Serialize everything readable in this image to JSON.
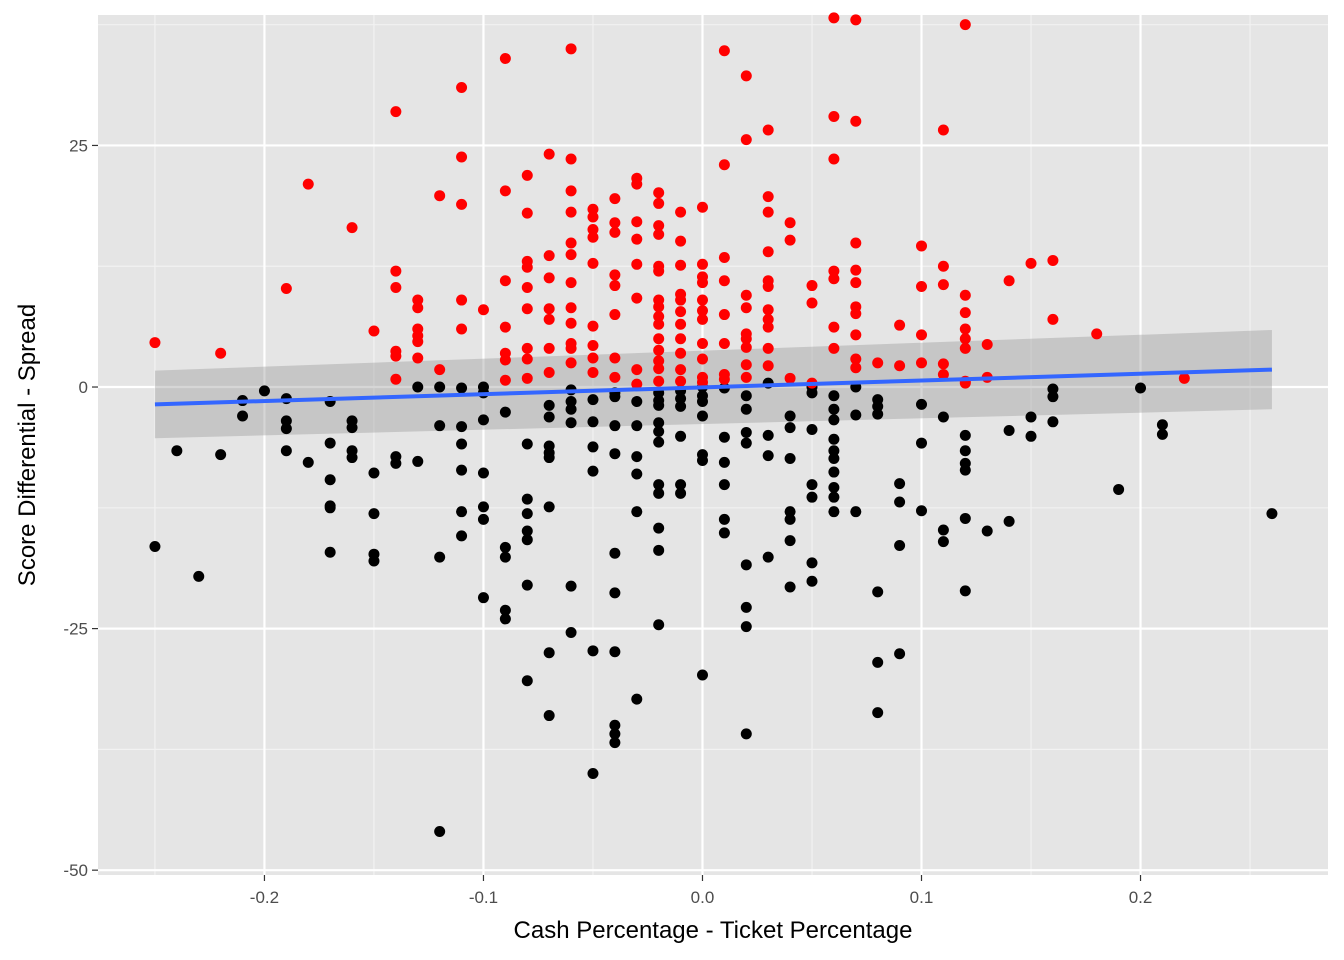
{
  "chart_data": {
    "type": "scatter",
    "title": "",
    "xlabel": "Cash Percentage - Ticket Percentage",
    "ylabel": "Score Differential - Spread",
    "xlim": [
      -0.276,
      0.2856
    ],
    "ylim": [
      -50.5,
      38.5
    ],
    "x_ticks": [
      -0.2,
      -0.1,
      0.0,
      0.1,
      0.2
    ],
    "x_tick_labels": [
      "-0.2",
      "-0.1",
      "0.0",
      "0.1",
      "0.2"
    ],
    "y_ticks": [
      -50,
      -25,
      0,
      25
    ],
    "y_tick_labels": [
      "-50",
      "-25",
      "0",
      "25"
    ],
    "grid": true,
    "background": "#e5e5e5",
    "grid_color": "#ffffff",
    "colors": {
      "positive": "#ff0000",
      "negative": "#000000",
      "trend": "#3366ff",
      "ribbon": "#999999"
    },
    "trend_line": {
      "x": [
        -0.25,
        0.26
      ],
      "y": [
        -1.8,
        1.8
      ]
    },
    "confidence_band": {
      "x": [
        -0.25,
        0.26
      ],
      "upper": [
        1.7,
        5.9
      ],
      "lower": [
        -5.3,
        -2.3
      ]
    },
    "positive_points": [
      [
        -0.25,
        4.6
      ],
      [
        -0.22,
        3.5
      ],
      [
        -0.19,
        10.2
      ],
      [
        -0.18,
        21.0
      ],
      [
        -0.16,
        16.5
      ],
      [
        -0.15,
        5.8
      ],
      [
        -0.14,
        28.5
      ],
      [
        -0.14,
        12.0
      ],
      [
        -0.14,
        10.3
      ],
      [
        -0.14,
        3.7
      ],
      [
        -0.14,
        3.2
      ],
      [
        -0.14,
        0.8
      ],
      [
        -0.13,
        9.0
      ],
      [
        -0.13,
        8.2
      ],
      [
        -0.13,
        6.0
      ],
      [
        -0.13,
        5.3
      ],
      [
        -0.13,
        4.7
      ],
      [
        -0.13,
        3.0
      ],
      [
        -0.12,
        19.8
      ],
      [
        -0.12,
        1.8
      ],
      [
        -0.11,
        31.0
      ],
      [
        -0.11,
        23.8
      ],
      [
        -0.11,
        18.9
      ],
      [
        -0.11,
        9.0
      ],
      [
        -0.11,
        6.0
      ],
      [
        -0.1,
        8.0
      ],
      [
        -0.09,
        34.0
      ],
      [
        -0.09,
        20.3
      ],
      [
        -0.09,
        11.0
      ],
      [
        -0.09,
        6.2
      ],
      [
        -0.09,
        3.5
      ],
      [
        -0.09,
        2.8
      ],
      [
        -0.09,
        0.7
      ],
      [
        -0.08,
        21.9
      ],
      [
        -0.08,
        18.0
      ],
      [
        -0.08,
        13.0
      ],
      [
        -0.08,
        12.4
      ],
      [
        -0.08,
        10.3
      ],
      [
        -0.08,
        8.1
      ],
      [
        -0.08,
        4.0
      ],
      [
        -0.08,
        2.9
      ],
      [
        -0.08,
        0.9
      ],
      [
        -0.07,
        24.1
      ],
      [
        -0.07,
        13.6
      ],
      [
        -0.07,
        11.3
      ],
      [
        -0.07,
        8.1
      ],
      [
        -0.07,
        7.0
      ],
      [
        -0.07,
        4.0
      ],
      [
        -0.07,
        1.5
      ],
      [
        -0.06,
        35.0
      ],
      [
        -0.06,
        23.6
      ],
      [
        -0.06,
        20.3
      ],
      [
        -0.06,
        18.1
      ],
      [
        -0.06,
        14.9
      ],
      [
        -0.06,
        13.7
      ],
      [
        -0.06,
        10.8
      ],
      [
        -0.06,
        8.2
      ],
      [
        -0.06,
        6.6
      ],
      [
        -0.06,
        4.5
      ],
      [
        -0.06,
        4.0
      ],
      [
        -0.06,
        2.5
      ],
      [
        -0.05,
        18.4
      ],
      [
        -0.05,
        17.6
      ],
      [
        -0.05,
        16.3
      ],
      [
        -0.05,
        15.5
      ],
      [
        -0.05,
        12.8
      ],
      [
        -0.05,
        6.3
      ],
      [
        -0.05,
        4.3
      ],
      [
        -0.05,
        3.0
      ],
      [
        -0.05,
        1.5
      ],
      [
        -0.04,
        19.5
      ],
      [
        -0.04,
        17.0
      ],
      [
        -0.04,
        16.0
      ],
      [
        -0.04,
        11.6
      ],
      [
        -0.04,
        10.5
      ],
      [
        -0.04,
        7.5
      ],
      [
        -0.04,
        3.0
      ],
      [
        -0.04,
        1.0
      ],
      [
        -0.03,
        21.6
      ],
      [
        -0.03,
        21.0
      ],
      [
        -0.03,
        17.1
      ],
      [
        -0.03,
        15.3
      ],
      [
        -0.03,
        12.7
      ],
      [
        -0.03,
        9.2
      ],
      [
        -0.03,
        1.8
      ],
      [
        -0.03,
        0.3
      ],
      [
        -0.02,
        20.1
      ],
      [
        -0.02,
        19.0
      ],
      [
        -0.02,
        16.7
      ],
      [
        -0.02,
        15.8
      ],
      [
        -0.02,
        12.5
      ],
      [
        -0.02,
        12.0
      ],
      [
        -0.02,
        9.0
      ],
      [
        -0.02,
        8.3
      ],
      [
        -0.02,
        7.3
      ],
      [
        -0.02,
        6.5
      ],
      [
        -0.02,
        5.0
      ],
      [
        -0.02,
        3.8
      ],
      [
        -0.02,
        2.7
      ],
      [
        -0.02,
        1.9
      ],
      [
        -0.02,
        0.6
      ],
      [
        -0.01,
        18.1
      ],
      [
        -0.01,
        15.1
      ],
      [
        -0.01,
        12.6
      ],
      [
        -0.01,
        9.6
      ],
      [
        -0.01,
        9.0
      ],
      [
        -0.01,
        7.8
      ],
      [
        -0.01,
        6.5
      ],
      [
        -0.01,
        5.0
      ],
      [
        -0.01,
        3.5
      ],
      [
        -0.01,
        1.8
      ],
      [
        -0.01,
        0.6
      ],
      [
        0.0,
        18.6
      ],
      [
        0.0,
        12.7
      ],
      [
        0.0,
        11.4
      ],
      [
        0.0,
        10.8
      ],
      [
        0.0,
        9.0
      ],
      [
        0.0,
        7.9
      ],
      [
        0.0,
        7.0
      ],
      [
        0.0,
        4.5
      ],
      [
        0.0,
        2.9
      ],
      [
        0.0,
        1.0
      ],
      [
        0.0,
        0.5
      ],
      [
        0.01,
        34.8
      ],
      [
        0.01,
        23.0
      ],
      [
        0.01,
        13.4
      ],
      [
        0.01,
        11.0
      ],
      [
        0.01,
        7.5
      ],
      [
        0.01,
        4.5
      ],
      [
        0.01,
        1.3
      ],
      [
        0.01,
        0.8
      ],
      [
        0.02,
        32.2
      ],
      [
        0.02,
        25.6
      ],
      [
        0.02,
        9.5
      ],
      [
        0.02,
        8.2
      ],
      [
        0.02,
        5.5
      ],
      [
        0.02,
        5.0
      ],
      [
        0.02,
        4.1
      ],
      [
        0.02,
        2.3
      ],
      [
        0.02,
        1.0
      ],
      [
        0.03,
        26.6
      ],
      [
        0.03,
        19.7
      ],
      [
        0.03,
        18.1
      ],
      [
        0.03,
        14.0
      ],
      [
        0.03,
        11.0
      ],
      [
        0.03,
        10.4
      ],
      [
        0.03,
        8.0
      ],
      [
        0.03,
        7.0
      ],
      [
        0.03,
        6.2
      ],
      [
        0.03,
        4.0
      ],
      [
        0.03,
        2.2
      ],
      [
        0.04,
        17.0
      ],
      [
        0.04,
        15.2
      ],
      [
        0.04,
        0.9
      ],
      [
        0.05,
        10.5
      ],
      [
        0.05,
        8.7
      ],
      [
        0.05,
        0.4
      ],
      [
        0.06,
        38.2
      ],
      [
        0.06,
        28.0
      ],
      [
        0.06,
        23.6
      ],
      [
        0.06,
        12.0
      ],
      [
        0.06,
        11.2
      ],
      [
        0.06,
        6.2
      ],
      [
        0.06,
        4.0
      ],
      [
        0.07,
        38.0
      ],
      [
        0.07,
        27.5
      ],
      [
        0.07,
        14.9
      ],
      [
        0.07,
        12.1
      ],
      [
        0.07,
        10.8
      ],
      [
        0.07,
        8.3
      ],
      [
        0.07,
        7.6
      ],
      [
        0.07,
        5.4
      ],
      [
        0.07,
        2.9
      ],
      [
        0.07,
        2.0
      ],
      [
        0.08,
        2.5
      ],
      [
        0.09,
        6.4
      ],
      [
        0.09,
        2.2
      ],
      [
        0.1,
        14.6
      ],
      [
        0.1,
        10.4
      ],
      [
        0.1,
        5.4
      ],
      [
        0.1,
        2.5
      ],
      [
        0.11,
        26.6
      ],
      [
        0.11,
        12.5
      ],
      [
        0.11,
        10.6
      ],
      [
        0.11,
        2.4
      ],
      [
        0.11,
        1.3
      ],
      [
        0.12,
        37.5
      ],
      [
        0.12,
        9.5
      ],
      [
        0.12,
        7.7
      ],
      [
        0.12,
        6.0
      ],
      [
        0.12,
        5.0
      ],
      [
        0.12,
        4.0
      ],
      [
        0.12,
        0.6
      ],
      [
        0.12,
        0.4
      ],
      [
        0.13,
        4.4
      ],
      [
        0.13,
        1.0
      ],
      [
        0.14,
        11.0
      ],
      [
        0.15,
        12.8
      ],
      [
        0.16,
        13.1
      ],
      [
        0.16,
        7.0
      ],
      [
        0.18,
        5.5
      ],
      [
        0.22,
        0.9
      ]
    ],
    "negative_points": [
      [
        -0.25,
        -16.5
      ],
      [
        -0.24,
        -6.6
      ],
      [
        -0.23,
        -19.6
      ],
      [
        -0.22,
        -7.0
      ],
      [
        -0.21,
        -1.4
      ],
      [
        -0.21,
        -3.0
      ],
      [
        -0.2,
        -0.4
      ],
      [
        -0.19,
        -1.2
      ],
      [
        -0.19,
        -3.5
      ],
      [
        -0.19,
        -4.3
      ],
      [
        -0.19,
        -6.6
      ],
      [
        -0.18,
        -7.8
      ],
      [
        -0.17,
        -1.5
      ],
      [
        -0.17,
        -5.8
      ],
      [
        -0.17,
        -9.6
      ],
      [
        -0.17,
        -12.3
      ],
      [
        -0.17,
        -12.5
      ],
      [
        -0.17,
        -17.1
      ],
      [
        -0.16,
        -3.5
      ],
      [
        -0.16,
        -4.2
      ],
      [
        -0.16,
        -6.6
      ],
      [
        -0.16,
        -7.3
      ],
      [
        -0.15,
        -8.9
      ],
      [
        -0.15,
        -13.1
      ],
      [
        -0.15,
        -17.3
      ],
      [
        -0.15,
        -18.0
      ],
      [
        -0.14,
        -7.2
      ],
      [
        -0.14,
        -7.9
      ],
      [
        -0.13,
        0.0
      ],
      [
        -0.13,
        -7.7
      ],
      [
        -0.12,
        0.0
      ],
      [
        -0.12,
        -4.0
      ],
      [
        -0.12,
        -17.6
      ],
      [
        -0.12,
        -46.0
      ],
      [
        -0.11,
        -0.1
      ],
      [
        -0.11,
        -4.1
      ],
      [
        -0.11,
        -5.9
      ],
      [
        -0.11,
        -8.6
      ],
      [
        -0.11,
        -12.9
      ],
      [
        -0.11,
        -15.4
      ],
      [
        -0.1,
        0.0
      ],
      [
        -0.1,
        -0.6
      ],
      [
        -0.1,
        -3.4
      ],
      [
        -0.1,
        -8.9
      ],
      [
        -0.1,
        -12.4
      ],
      [
        -0.1,
        -13.7
      ],
      [
        -0.1,
        -21.8
      ],
      [
        -0.09,
        -2.6
      ],
      [
        -0.09,
        -16.6
      ],
      [
        -0.09,
        -17.6
      ],
      [
        -0.09,
        -23.1
      ],
      [
        -0.09,
        -24.0
      ],
      [
        -0.08,
        -5.9
      ],
      [
        -0.08,
        -11.6
      ],
      [
        -0.08,
        -13.1
      ],
      [
        -0.08,
        -14.9
      ],
      [
        -0.08,
        -15.8
      ],
      [
        -0.08,
        -20.5
      ],
      [
        -0.08,
        -30.4
      ],
      [
        -0.07,
        -1.9
      ],
      [
        -0.07,
        -3.1
      ],
      [
        -0.07,
        -6.1
      ],
      [
        -0.07,
        -6.8
      ],
      [
        -0.07,
        -7.3
      ],
      [
        -0.07,
        -12.4
      ],
      [
        -0.07,
        -27.5
      ],
      [
        -0.07,
        -34.0
      ],
      [
        -0.06,
        -0.3
      ],
      [
        -0.06,
        -1.5
      ],
      [
        -0.06,
        -2.3
      ],
      [
        -0.06,
        -3.7
      ],
      [
        -0.06,
        -20.6
      ],
      [
        -0.06,
        -25.4
      ],
      [
        -0.05,
        -1.3
      ],
      [
        -0.05,
        -3.6
      ],
      [
        -0.05,
        -6.2
      ],
      [
        -0.05,
        -8.7
      ],
      [
        -0.05,
        -27.3
      ],
      [
        -0.05,
        -40.0
      ],
      [
        -0.04,
        -0.6
      ],
      [
        -0.04,
        -1.0
      ],
      [
        -0.04,
        -4.0
      ],
      [
        -0.04,
        -6.9
      ],
      [
        -0.04,
        -17.2
      ],
      [
        -0.04,
        -21.3
      ],
      [
        -0.04,
        -27.4
      ],
      [
        -0.04,
        -35.0
      ],
      [
        -0.04,
        -35.9
      ],
      [
        -0.04,
        -36.8
      ],
      [
        -0.03,
        -1.5
      ],
      [
        -0.03,
        -4.0
      ],
      [
        -0.03,
        -7.2
      ],
      [
        -0.03,
        -9.0
      ],
      [
        -0.03,
        -12.9
      ],
      [
        -0.03,
        -32.3
      ],
      [
        -0.02,
        -0.6
      ],
      [
        -0.02,
        -1.4
      ],
      [
        -0.02,
        -1.9
      ],
      [
        -0.02,
        -3.7
      ],
      [
        -0.02,
        -4.6
      ],
      [
        -0.02,
        -5.7
      ],
      [
        -0.02,
        -10.1
      ],
      [
        -0.02,
        -11.0
      ],
      [
        -0.02,
        -14.6
      ],
      [
        -0.02,
        -16.9
      ],
      [
        -0.02,
        -24.6
      ],
      [
        -0.01,
        -0.4
      ],
      [
        -0.01,
        -1.2
      ],
      [
        -0.01,
        -2.0
      ],
      [
        -0.01,
        -5.1
      ],
      [
        -0.01,
        -10.1
      ],
      [
        -0.01,
        -11.0
      ],
      [
        0.0,
        0.0
      ],
      [
        0.0,
        -0.9
      ],
      [
        0.0,
        -1.5
      ],
      [
        0.0,
        -3.0
      ],
      [
        0.0,
        -7.0
      ],
      [
        0.0,
        -7.6
      ],
      [
        0.0,
        -29.8
      ],
      [
        0.01,
        -0.1
      ],
      [
        0.01,
        -5.2
      ],
      [
        0.01,
        -7.8
      ],
      [
        0.01,
        -10.1
      ],
      [
        0.01,
        -13.7
      ],
      [
        0.01,
        -15.1
      ],
      [
        0.02,
        -0.9
      ],
      [
        0.02,
        -2.3
      ],
      [
        0.02,
        -4.7
      ],
      [
        0.02,
        -5.8
      ],
      [
        0.02,
        -18.4
      ],
      [
        0.02,
        -22.8
      ],
      [
        0.02,
        -24.8
      ],
      [
        0.02,
        -35.9
      ],
      [
        0.03,
        0.4
      ],
      [
        0.03,
        -5.0
      ],
      [
        0.03,
        -7.1
      ],
      [
        0.03,
        -17.6
      ],
      [
        0.04,
        -3.0
      ],
      [
        0.04,
        -4.2
      ],
      [
        0.04,
        -7.4
      ],
      [
        0.04,
        -12.9
      ],
      [
        0.04,
        -13.7
      ],
      [
        0.04,
        -15.9
      ],
      [
        0.04,
        -20.7
      ],
      [
        0.05,
        0.0
      ],
      [
        0.05,
        -0.6
      ],
      [
        0.05,
        -4.4
      ],
      [
        0.05,
        -10.1
      ],
      [
        0.05,
        -11.4
      ],
      [
        0.05,
        -18.2
      ],
      [
        0.05,
        -20.1
      ],
      [
        0.06,
        -0.9
      ],
      [
        0.06,
        -2.3
      ],
      [
        0.06,
        -3.4
      ],
      [
        0.06,
        -5.4
      ],
      [
        0.06,
        -6.6
      ],
      [
        0.06,
        -7.4
      ],
      [
        0.06,
        -8.8
      ],
      [
        0.06,
        -10.4
      ],
      [
        0.06,
        -11.4
      ],
      [
        0.06,
        -12.9
      ],
      [
        0.07,
        0.0
      ],
      [
        0.07,
        -2.9
      ],
      [
        0.07,
        -12.9
      ],
      [
        0.08,
        -1.3
      ],
      [
        0.08,
        -2.0
      ],
      [
        0.08,
        -2.8
      ],
      [
        0.08,
        -21.2
      ],
      [
        0.08,
        -28.5
      ],
      [
        0.08,
        -33.7
      ],
      [
        0.09,
        -10.0
      ],
      [
        0.09,
        -11.9
      ],
      [
        0.09,
        -16.4
      ],
      [
        0.09,
        -27.6
      ],
      [
        0.1,
        -1.8
      ],
      [
        0.1,
        -5.8
      ],
      [
        0.1,
        -12.8
      ],
      [
        0.11,
        -3.1
      ],
      [
        0.11,
        -14.8
      ],
      [
        0.11,
        -16.0
      ],
      [
        0.12,
        -5.0
      ],
      [
        0.12,
        -6.6
      ],
      [
        0.12,
        -7.9
      ],
      [
        0.12,
        -8.6
      ],
      [
        0.12,
        -13.6
      ],
      [
        0.12,
        -21.1
      ],
      [
        0.13,
        -14.9
      ],
      [
        0.14,
        -4.5
      ],
      [
        0.14,
        -13.9
      ],
      [
        0.15,
        -3.1
      ],
      [
        0.15,
        -5.1
      ],
      [
        0.16,
        -0.2
      ],
      [
        0.16,
        -1.0
      ],
      [
        0.16,
        -3.6
      ],
      [
        0.19,
        -10.6
      ],
      [
        0.2,
        -0.1
      ],
      [
        0.21,
        -3.9
      ],
      [
        0.21,
        -4.9
      ],
      [
        0.26,
        -13.1
      ]
    ]
  }
}
